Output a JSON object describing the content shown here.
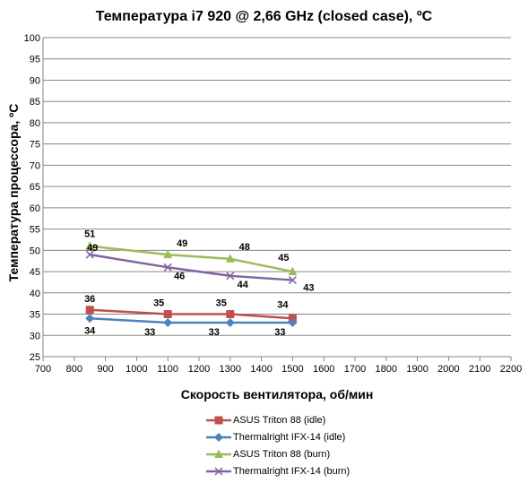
{
  "chart_data": {
    "type": "line",
    "title": "Температура i7 920 @ 2,66 GHz (closed case), ºС",
    "xlabel": "Скорость вентилятора, об/мин",
    "ylabel": "Температура процессора, ºС",
    "xlim": [
      700,
      2200
    ],
    "ylim": [
      25,
      100
    ],
    "xticks": [
      "700",
      "800",
      "900",
      "1000",
      "1100",
      "1200",
      "1300",
      "1400",
      "1500",
      "1600",
      "1700",
      "1800",
      "1900",
      "2000",
      "2100",
      "2200"
    ],
    "yticks": [
      "25",
      "30",
      "35",
      "40",
      "45",
      "50",
      "55",
      "60",
      "65",
      "70",
      "75",
      "80",
      "85",
      "90",
      "95",
      "100"
    ],
    "grid": "horizontal",
    "legend": "bottom",
    "series": [
      {
        "name": "ASUS Triton 88 (idle)",
        "color": "#c0504d",
        "marker": "square",
        "x": [
          850,
          1100,
          1300,
          1500
        ],
        "y": [
          36,
          35,
          35,
          34
        ],
        "labels": [
          "36",
          "35",
          "35",
          "34"
        ]
      },
      {
        "name": "Thermalright IFX-14 (idle)",
        "color": "#4f81bd",
        "marker": "diamond",
        "x": [
          850,
          1100,
          1300,
          1500
        ],
        "y": [
          34,
          33,
          33,
          33
        ],
        "labels": [
          "34",
          "33",
          "33",
          "33"
        ]
      },
      {
        "name": "ASUS Triton 88 (burn)",
        "color": "#9bbb59",
        "marker": "triangle",
        "x": [
          850,
          1100,
          1300,
          1500
        ],
        "y": [
          51,
          49,
          48,
          45
        ],
        "labels": [
          "51",
          "49",
          "48",
          "45"
        ]
      },
      {
        "name": "Thermalright IFX-14 (burn)",
        "color": "#8064a2",
        "marker": "x",
        "x": [
          850,
          1100,
          1300,
          1500
        ],
        "y": [
          49,
          46,
          44,
          43
        ],
        "labels": [
          "49",
          "46",
          "44",
          "43"
        ]
      }
    ]
  }
}
